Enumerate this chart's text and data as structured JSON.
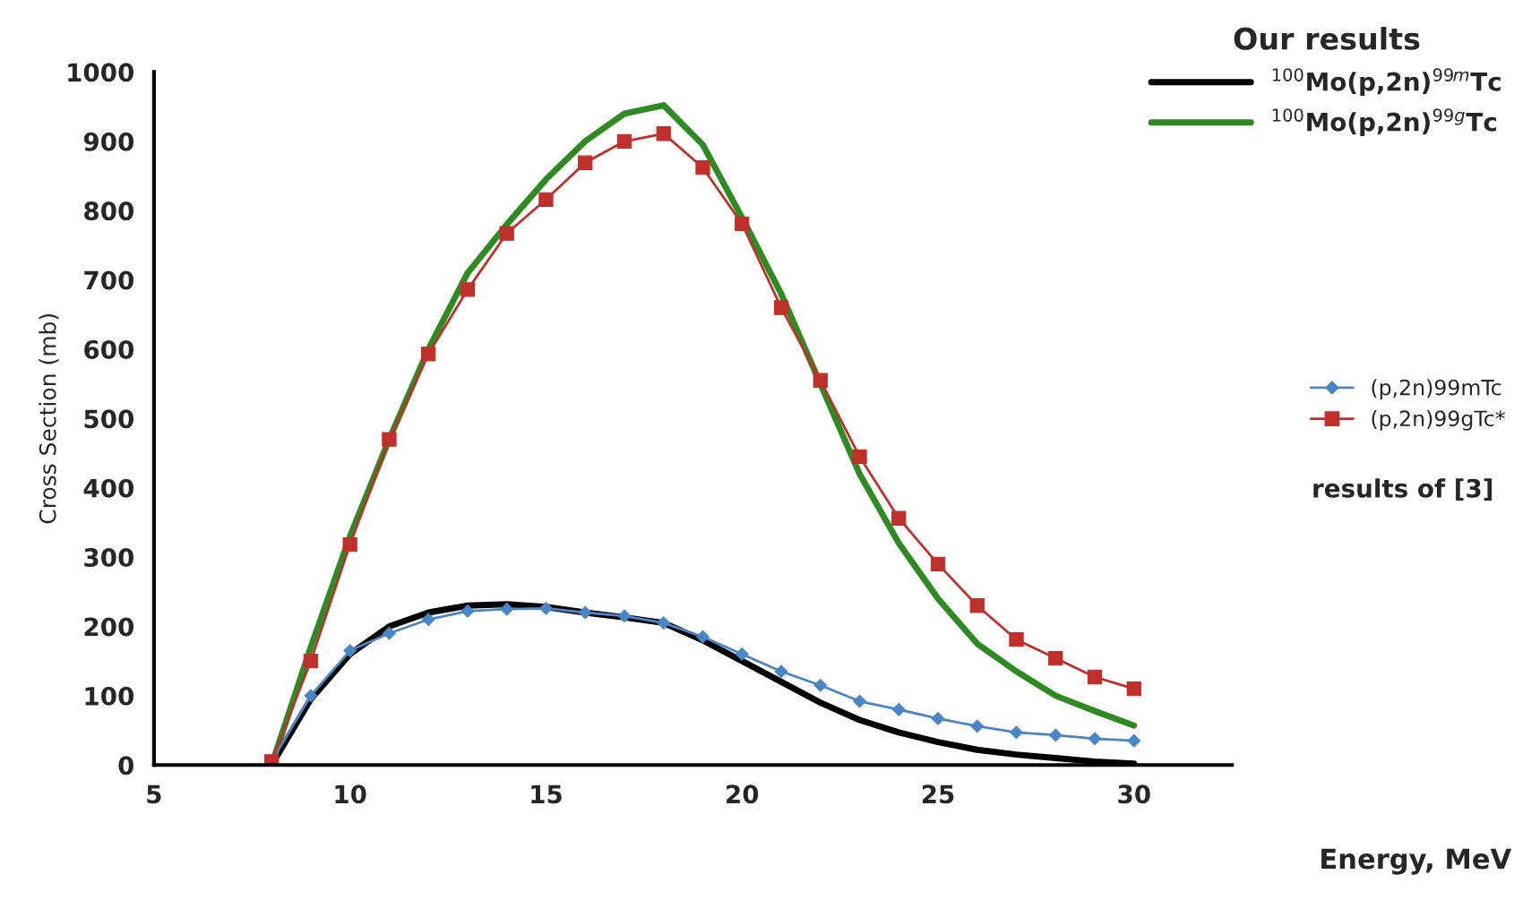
{
  "chart_data": {
    "type": "line",
    "xlabel": "Energy, MeV",
    "ylabel": "Cross Section (mb)",
    "legend_title": "Our results",
    "x": [
      8,
      9,
      10,
      11,
      12,
      13,
      14,
      15,
      16,
      17,
      18,
      19,
      20,
      21,
      22,
      23,
      24,
      25,
      26,
      27,
      28,
      29,
      30
    ],
    "series": [
      {
        "name": "$^{100}$Mo(p,2n)$^{99m}$Tc",
        "color": "#000000",
        "marker": "none",
        "values": [
          0,
          95,
          160,
          200,
          220,
          230,
          232,
          228,
          220,
          213,
          205,
          180,
          150,
          120,
          90,
          65,
          47,
          33,
          22,
          15,
          10,
          5,
          2
        ]
      },
      {
        "name": "$^{100}$Mo(p,2n)$^{99g}$Tc",
        "color": "#2e8b22",
        "marker": "none",
        "values": [
          0,
          170,
          330,
          470,
          600,
          710,
          780,
          845,
          900,
          940,
          952,
          895,
          790,
          680,
          550,
          420,
          320,
          240,
          175,
          135,
          100,
          78,
          57
        ]
      },
      {
        "name": "(p,2n)99mTc",
        "color": "#4a86c5",
        "marker": "diamond",
        "values": [
          5,
          100,
          165,
          190,
          210,
          222,
          225,
          226,
          220,
          215,
          205,
          185,
          160,
          135,
          115,
          92,
          80,
          67,
          56,
          47,
          43,
          38,
          35
        ]
      },
      {
        "name": "(p,2n)99gTc*",
        "color": "#c0302a",
        "marker": "square",
        "values": [
          5,
          150,
          318,
          470,
          593,
          686,
          767,
          816,
          869,
          900,
          911,
          862,
          781,
          660,
          555,
          445,
          356,
          290,
          230,
          181,
          154,
          127,
          110
        ]
      }
    ],
    "xlim": [
      5,
      32.5
    ],
    "xticks": [
      5,
      10,
      15,
      20,
      25,
      30
    ],
    "ylim": [
      0,
      1000
    ],
    "yticks": [
      0,
      100,
      200,
      300,
      400,
      500,
      600,
      700,
      800,
      900,
      1000
    ],
    "grid": false,
    "legend": "top right",
    "annotations": [
      "results of [3]"
    ]
  }
}
